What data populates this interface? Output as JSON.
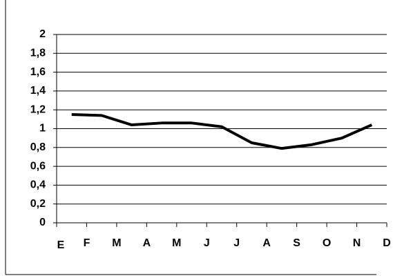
{
  "chart_data": {
    "type": "line",
    "x": [
      0.5,
      1.5,
      2.5,
      3.5,
      4.5,
      5.5,
      6.5,
      7.5,
      8.5,
      9.5,
      10.5
    ],
    "series": [
      {
        "color": "#000000",
        "values": [
          1.15,
          1.14,
          1.04,
          1.06,
          1.06,
          1.02,
          0.85,
          0.79,
          0.83,
          0.9,
          1.04
        ]
      }
    ],
    "xlim": [
      0,
      11
    ],
    "xticks": [
      {
        "value": 0,
        "label": "E"
      },
      {
        "value": 1,
        "label": "F"
      },
      {
        "value": 2,
        "label": "M"
      },
      {
        "value": 3,
        "label": "A"
      },
      {
        "value": 4,
        "label": "M"
      },
      {
        "value": 5,
        "label": "J"
      },
      {
        "value": 6,
        "label": "J"
      },
      {
        "value": 7,
        "label": "A"
      },
      {
        "value": 8,
        "label": "S"
      },
      {
        "value": 9,
        "label": "O"
      },
      {
        "value": 10,
        "label": "N"
      },
      {
        "value": 11,
        "label": "D"
      }
    ],
    "ylim": [
      0,
      2
    ],
    "yticks": [
      0,
      {
        "value": 0.2,
        "label": "0,2"
      },
      {
        "value": 0.4,
        "label": "0,4"
      },
      {
        "value": 0.6,
        "label": "0,6"
      },
      {
        "value": 0.8,
        "label": "0,8"
      },
      1,
      {
        "value": 1.2,
        "label": "1,2"
      },
      {
        "value": 1.4,
        "label": "1,4"
      },
      {
        "value": 1.6,
        "label": "1,6"
      },
      {
        "value": 1.8,
        "label": "1,8"
      },
      2
    ],
    "grid": true
  }
}
